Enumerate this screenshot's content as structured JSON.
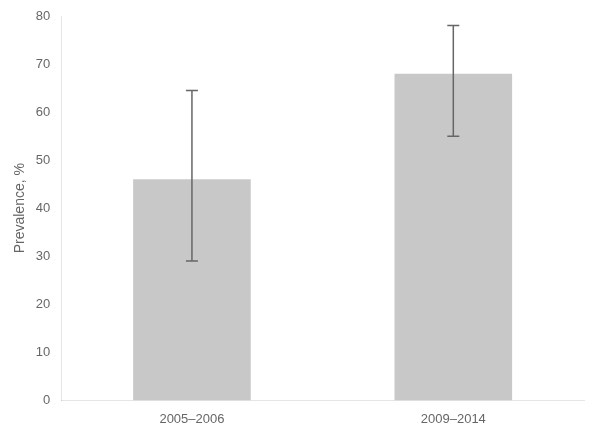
{
  "chart_data": {
    "type": "bar",
    "categories": [
      "2005–2006",
      "2009–2014"
    ],
    "values": [
      46.0,
      68.0
    ],
    "error_lower": [
      17.0,
      13.0
    ],
    "error_upper": [
      18.5,
      10.0
    ],
    "color": "#c8c8c8",
    "ylabel": "Prevalence, %",
    "ylim": [
      0,
      80
    ],
    "yticks": [
      0,
      10,
      20,
      30,
      40,
      50,
      60,
      70,
      80
    ],
    "grid": false
  }
}
